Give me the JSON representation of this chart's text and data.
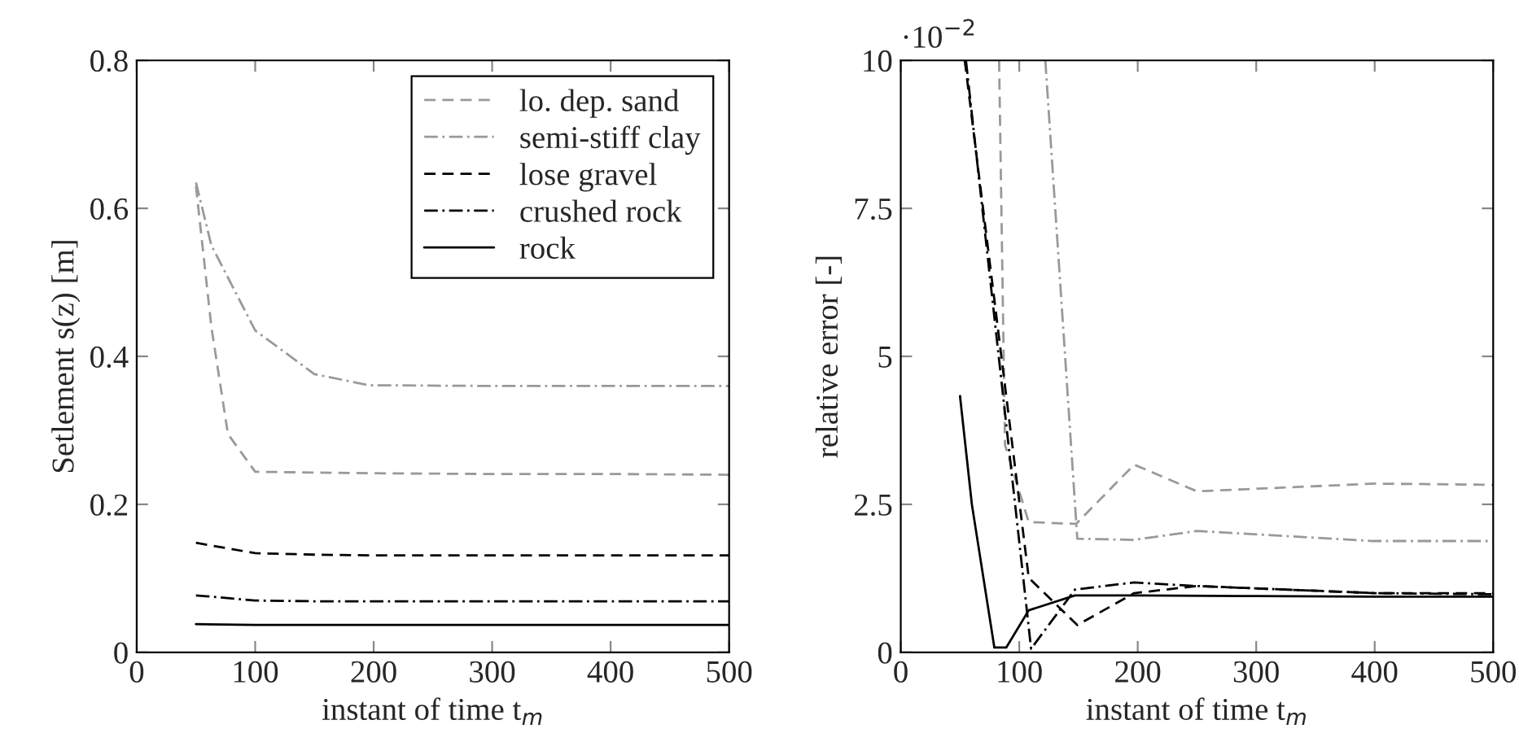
{
  "chart_data": [
    {
      "type": "line",
      "xlabel": "instant of time t$_{m}$",
      "ylabel": "Setlement s(z) [m]",
      "xlim": [
        0,
        500
      ],
      "ylim": [
        0,
        0.8
      ],
      "xticks": [
        0,
        100,
        200,
        300,
        400,
        500
      ],
      "yticks": [
        0,
        0.2,
        0.4,
        0.6,
        0.8
      ],
      "grid": false,
      "legend": "top right",
      "series": [
        {
          "name": "lo. dep. sand",
          "color": "#999999",
          "line_style": "dashed",
          "x": [
            50,
            63,
            77,
            100,
            150,
            200,
            300,
            400,
            500
          ],
          "values": [
            0.63,
            0.44,
            0.295,
            0.244,
            0.243,
            0.242,
            0.241,
            0.241,
            0.24
          ]
        },
        {
          "name": "semi-stiff clay",
          "color": "#999999",
          "line_style": "dashdot",
          "x": [
            50,
            63,
            100,
            150,
            196,
            300,
            400,
            500
          ],
          "values": [
            0.635,
            0.55,
            0.435,
            0.376,
            0.361,
            0.36,
            0.36,
            0.36
          ]
        },
        {
          "name": "lose gravel",
          "color": "#000000",
          "line_style": "dashed",
          "x": [
            50,
            100,
            150,
            200,
            300,
            400,
            500
          ],
          "values": [
            0.148,
            0.134,
            0.132,
            0.131,
            0.131,
            0.131,
            0.131
          ]
        },
        {
          "name": "crushed rock",
          "color": "#000000",
          "line_style": "dashdot",
          "x": [
            50,
            100,
            150,
            200,
            300,
            400,
            500
          ],
          "values": [
            0.077,
            0.07,
            0.069,
            0.069,
            0.069,
            0.069,
            0.069
          ]
        },
        {
          "name": "rock",
          "color": "#000000",
          "line_style": "solid",
          "x": [
            50,
            100,
            200,
            300,
            400,
            500
          ],
          "values": [
            0.038,
            0.037,
            0.037,
            0.037,
            0.037,
            0.037
          ]
        }
      ]
    },
    {
      "type": "line",
      "xlabel": "instant of time t$_{m}$",
      "ylabel": "relative error [-]",
      "annotations": [
        "·10$^{−2}$"
      ],
      "xlim": [
        0,
        500
      ],
      "ylim": [
        0,
        10
      ],
      "xticks": [
        0,
        100,
        200,
        300,
        400,
        500
      ],
      "yticks": [
        0,
        2.5,
        5,
        7.5,
        10
      ],
      "grid": false,
      "series": [
        {
          "color": "#999999",
          "line_style": "dashed",
          "x": [
            83,
            88,
            108,
            148,
            197,
            250,
            400,
            500
          ],
          "values": [
            10,
            3.5,
            2.2,
            2.17,
            3.17,
            2.72,
            2.85,
            2.83
          ]
        },
        {
          "color": "#999999",
          "line_style": "dashdot",
          "x": [
            122,
            149,
            197,
            250,
            399,
            500
          ],
          "values": [
            10,
            1.92,
            1.9,
            2.05,
            1.88,
            1.88
          ]
        },
        {
          "color": "#000000",
          "line_style": "dashed",
          "x": [
            54,
            108,
            149,
            197,
            250,
            400,
            500
          ],
          "values": [
            10,
            1.26,
            0.46,
            1.0,
            1.12,
            1.0,
            1.0
          ]
        },
        {
          "color": "#000000",
          "line_style": "dashdot",
          "x": [
            55,
            110,
            147,
            197,
            250,
            400,
            500
          ],
          "values": [
            10,
            0.06,
            1.06,
            1.18,
            1.12,
            1.0,
            0.98
          ]
        },
        {
          "color": "#000000",
          "line_style": "solid",
          "x": [
            50,
            60,
            79,
            89,
            108,
            147,
            200,
            300,
            400,
            500
          ],
          "values": [
            4.33,
            2.5,
            0.08,
            0.08,
            0.71,
            0.96,
            0.96,
            0.95,
            0.94,
            0.94
          ]
        }
      ]
    }
  ]
}
